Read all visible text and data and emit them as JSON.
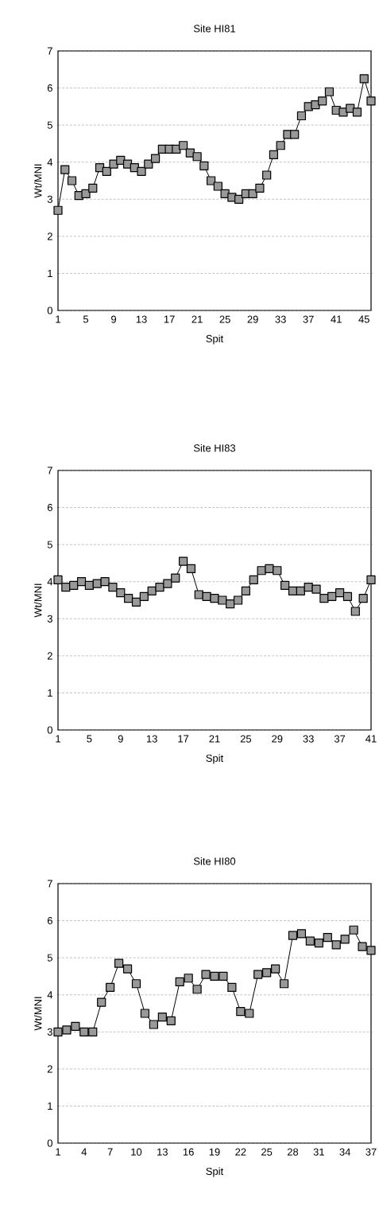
{
  "chart_data": [
    {
      "type": "line",
      "title": "Site HI81",
      "xlabel": "Spit",
      "ylabel": "Wt/MNI",
      "x": [
        1,
        2,
        3,
        4,
        5,
        6,
        7,
        8,
        9,
        10,
        11,
        12,
        13,
        14,
        15,
        16,
        17,
        18,
        19,
        20,
        21,
        22,
        23,
        24,
        25,
        26,
        27,
        28,
        29,
        30,
        31,
        32,
        33,
        34,
        35,
        36,
        37,
        38,
        39,
        40,
        41,
        42,
        43,
        44,
        45,
        46
      ],
      "values": [
        2.7,
        3.8,
        3.5,
        3.1,
        3.15,
        3.3,
        3.85,
        3.75,
        3.95,
        4.05,
        3.95,
        3.85,
        3.75,
        3.95,
        4.1,
        4.35,
        4.35,
        4.35,
        4.45,
        4.25,
        4.15,
        3.9,
        3.5,
        3.35,
        3.15,
        3.05,
        3.0,
        3.15,
        3.15,
        3.3,
        3.65,
        4.2,
        4.45,
        4.75,
        4.75,
        5.25,
        5.5,
        5.55,
        5.65,
        5.9,
        5.4,
        5.35,
        5.45,
        5.35,
        6.25,
        5.65
      ],
      "color": "#999999",
      "marker": "square",
      "line_style": "solid",
      "grid": "y",
      "xlim": [
        1,
        46
      ],
      "ylim": [
        0,
        7
      ],
      "xticks": [
        1,
        5,
        9,
        13,
        17,
        21,
        25,
        29,
        33,
        37,
        41,
        45
      ],
      "yticks": [
        0,
        1,
        2,
        3,
        4,
        5,
        6,
        7
      ]
    },
    {
      "type": "line",
      "title": "Site HI83",
      "xlabel": "Spit",
      "ylabel": "Wt/MNI",
      "x": [
        1,
        2,
        3,
        4,
        5,
        6,
        7,
        8,
        9,
        10,
        11,
        12,
        13,
        14,
        15,
        16,
        17,
        18,
        19,
        20,
        21,
        22,
        23,
        24,
        25,
        26,
        27,
        28,
        29,
        30,
        31,
        32,
        33,
        34,
        35,
        36,
        37,
        38,
        39,
        40,
        41
      ],
      "values": [
        4.05,
        3.85,
        3.9,
        4.0,
        3.9,
        3.95,
        4.0,
        3.85,
        3.7,
        3.55,
        3.45,
        3.6,
        3.75,
        3.85,
        3.95,
        4.1,
        4.55,
        4.35,
        3.65,
        3.6,
        3.55,
        3.5,
        3.4,
        3.5,
        3.75,
        4.05,
        4.3,
        4.35,
        4.3,
        3.9,
        3.75,
        3.75,
        3.85,
        3.8,
        3.55,
        3.6,
        3.7,
        3.6,
        3.2,
        3.55,
        4.05
      ],
      "color": "#999999",
      "marker": "square",
      "line_style": "solid",
      "grid": "y",
      "xlim": [
        1,
        41
      ],
      "ylim": [
        0,
        7
      ],
      "xticks": [
        1,
        5,
        9,
        13,
        17,
        21,
        25,
        29,
        33,
        37,
        41
      ],
      "yticks": [
        0,
        1,
        2,
        3,
        4,
        5,
        6,
        7
      ]
    },
    {
      "type": "line",
      "title": "Site HI80",
      "xlabel": "Spit",
      "ylabel": "Wt/MNI",
      "x": [
        1,
        2,
        3,
        4,
        5,
        6,
        7,
        8,
        9,
        10,
        11,
        12,
        13,
        14,
        15,
        16,
        17,
        18,
        19,
        20,
        21,
        22,
        23,
        24,
        25,
        26,
        27,
        28,
        29,
        30,
        31,
        32,
        33,
        34,
        35,
        36,
        37
      ],
      "values": [
        3.0,
        3.05,
        3.15,
        3.0,
        3.0,
        3.8,
        4.2,
        4.85,
        4.7,
        4.3,
        3.5,
        3.2,
        3.4,
        3.3,
        4.35,
        4.45,
        4.15,
        4.55,
        4.5,
        4.5,
        4.2,
        3.55,
        3.5,
        4.55,
        4.6,
        4.7,
        4.3,
        5.6,
        5.65,
        5.45,
        5.4,
        5.55,
        5.35,
        5.5,
        5.75,
        5.3,
        5.2
      ],
      "color": "#999999",
      "marker": "square",
      "line_style": "solid",
      "grid": "y",
      "xlim": [
        1,
        37
      ],
      "ylim": [
        0,
        7
      ],
      "xticks": [
        1,
        4,
        7,
        10,
        13,
        16,
        19,
        22,
        25,
        28,
        31,
        34,
        37
      ],
      "yticks": [
        0,
        1,
        2,
        3,
        4,
        5,
        6,
        7
      ]
    }
  ]
}
